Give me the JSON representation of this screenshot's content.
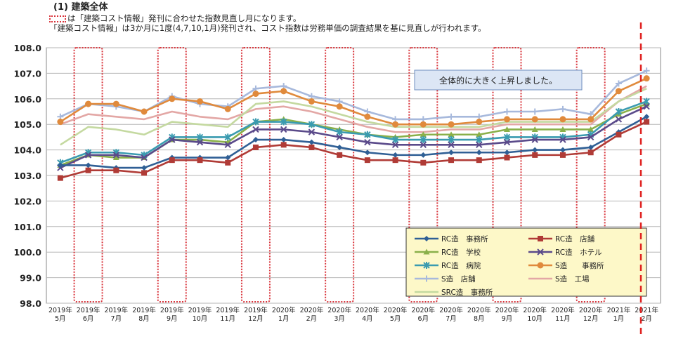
{
  "header": {
    "title": "(1)  建築全体",
    "note_line1": "は「建築コスト情報」発刊に合わせた指数見直し月になります。",
    "note_line2": "「建築コスト情報」は3か月に1度(4,7,10,1月)発刊され、コスト指数は労務単価の調査結果を基に見直しが行われます。"
  },
  "chart_data": {
    "type": "line",
    "x_years": [
      "2019年",
      "2019年",
      "2019年",
      "2019年",
      "2019年",
      "2019年",
      "2019年",
      "2019年",
      "2020年",
      "2020年",
      "2020年",
      "2020年",
      "2020年",
      "2020年",
      "2020年",
      "2020年",
      "2020年",
      "2020年",
      "2020年",
      "2020年",
      "2021年",
      "2021年"
    ],
    "x_months": [
      "5月",
      "6月",
      "7月",
      "8月",
      "9月",
      "10月",
      "11月",
      "12月",
      "1月",
      "2月",
      "3月",
      "4月",
      "5月",
      "6月",
      "7月",
      "8月",
      "9月",
      "10月",
      "11月",
      "12月",
      "1月",
      "2月"
    ],
    "ylim": [
      98.0,
      108.0
    ],
    "y_ticks": [
      "108.0",
      "107.0",
      "106.0",
      "105.0",
      "104.0",
      "103.0",
      "102.0",
      "101.0",
      "100.0",
      "99.0",
      "98.0"
    ],
    "grid": "horizontal",
    "highlighted_months": [
      "6月",
      "9月",
      "12月",
      "3月",
      "6月",
      "9月",
      "12月"
    ],
    "highlighted_indices": [
      1,
      4,
      7,
      10,
      13,
      16,
      19
    ],
    "annotation": "全体的に大きく上昇しました。",
    "legend_position": "bottom-right",
    "series": [
      {
        "name": "RC造　事務所",
        "color": "#2f5f95",
        "marker": "diamond",
        "values": [
          103.4,
          103.4,
          103.3,
          103.3,
          103.7,
          103.7,
          103.7,
          104.4,
          104.4,
          104.3,
          104.1,
          103.9,
          103.8,
          103.8,
          103.9,
          103.9,
          103.9,
          104.0,
          104.0,
          104.1,
          104.7,
          105.3
        ]
      },
      {
        "name": "RC造　店舗",
        "color": "#b03b36",
        "marker": "square",
        "values": [
          102.9,
          103.2,
          103.2,
          103.1,
          103.6,
          103.6,
          103.5,
          104.1,
          104.2,
          104.1,
          103.8,
          103.6,
          103.6,
          103.5,
          103.6,
          103.6,
          103.7,
          103.8,
          103.8,
          103.9,
          104.6,
          105.1
        ]
      },
      {
        "name": "RC造　学校",
        "color": "#8ab04a",
        "marker": "triangle",
        "values": [
          103.4,
          103.8,
          103.7,
          103.7,
          104.4,
          104.4,
          104.3,
          105.1,
          105.2,
          105.0,
          104.8,
          104.6,
          104.5,
          104.6,
          104.6,
          104.6,
          104.8,
          104.8,
          104.8,
          104.8,
          105.4,
          105.8
        ]
      },
      {
        "name": "RC造　ホテル",
        "color": "#5a4a8a",
        "marker": "x",
        "values": [
          103.3,
          103.8,
          103.8,
          103.7,
          104.4,
          104.3,
          104.2,
          104.8,
          104.8,
          104.7,
          104.5,
          104.3,
          104.2,
          104.2,
          104.2,
          104.2,
          104.3,
          104.4,
          104.4,
          104.5,
          105.2,
          105.7
        ]
      },
      {
        "name": "RC造　病院",
        "color": "#3a9bb0",
        "marker": "star",
        "values": [
          103.5,
          103.9,
          103.9,
          103.8,
          104.5,
          104.5,
          104.5,
          105.1,
          105.1,
          105.0,
          104.7,
          104.6,
          104.4,
          104.4,
          104.4,
          104.4,
          104.5,
          104.5,
          104.5,
          104.6,
          105.5,
          105.9
        ]
      },
      {
        "name": "S造　　事務所",
        "color": "#e08a3c",
        "marker": "circle",
        "values": [
          105.1,
          105.8,
          105.8,
          105.5,
          106.0,
          105.9,
          105.6,
          106.2,
          106.3,
          105.9,
          105.7,
          105.3,
          105.0,
          105.0,
          105.0,
          105.1,
          105.2,
          105.2,
          105.2,
          105.2,
          106.3,
          106.8
        ]
      },
      {
        "name": "S造　店舗",
        "color": "#a7b9dc",
        "marker": "plus",
        "values": [
          105.3,
          105.8,
          105.7,
          105.5,
          106.1,
          105.8,
          105.7,
          106.4,
          106.5,
          106.1,
          105.9,
          105.5,
          105.2,
          105.2,
          105.3,
          105.3,
          105.5,
          105.5,
          105.6,
          105.4,
          106.6,
          107.1
        ]
      },
      {
        "name": "S造　工場",
        "color": "#e3a7a5",
        "marker": "none",
        "values": [
          105.0,
          105.4,
          105.3,
          105.2,
          105.5,
          105.3,
          105.2,
          105.6,
          105.7,
          105.5,
          105.2,
          104.9,
          104.7,
          104.7,
          104.8,
          104.8,
          105.0,
          105.0,
          105.0,
          105.0,
          105.9,
          106.5
        ]
      },
      {
        "name": "SRC造　事務所",
        "color": "#c4d9a0",
        "marker": "none",
        "values": [
          104.2,
          104.9,
          104.8,
          104.6,
          105.1,
          105.0,
          104.9,
          105.8,
          105.9,
          105.7,
          105.4,
          105.1,
          104.9,
          104.9,
          104.9,
          104.9,
          105.1,
          105.1,
          105.1,
          105.1,
          105.9,
          106.4
        ]
      }
    ]
  }
}
